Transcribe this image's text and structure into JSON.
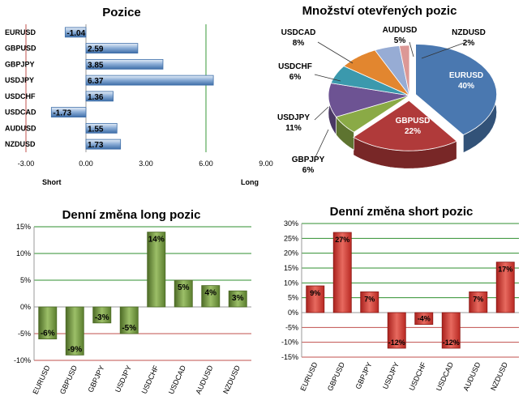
{
  "chart_data": [
    {
      "type": "bar",
      "orientation": "horizontal",
      "title": "Pozice",
      "categories": [
        "EURUSD",
        "GBPUSD",
        "GBPJPY",
        "USDJPY",
        "USDCHF",
        "USDCAD",
        "AUDUSD",
        "NZDUSD"
      ],
      "values": [
        -1.04,
        2.59,
        3.85,
        6.37,
        1.36,
        -1.73,
        1.55,
        1.73
      ],
      "value_labels": [
        "-1.04",
        "2.59",
        "3.85",
        "6.37",
        "1.36",
        "-1.73",
        "1.55",
        "1.73"
      ],
      "xlim": [
        -3,
        9
      ],
      "ticks": [
        "-3.00",
        "0.00",
        "3.00",
        "6.00",
        "9.00"
      ],
      "axis_left_label": "Short",
      "axis_right_label": "Long",
      "color": "#4f7fb8"
    },
    {
      "type": "pie",
      "title": "Množství otevřených pozic",
      "slices": [
        {
          "label": "EURUSD",
          "value": 40,
          "pct": "40%",
          "color": "#4a78b0"
        },
        {
          "label": "GBPUSD",
          "value": 22,
          "pct": "22%",
          "color": "#b03a3a"
        },
        {
          "label": "GBPJPY",
          "value": 6,
          "pct": "6%",
          "color": "#8aaa46"
        },
        {
          "label": "USDJPY",
          "value": 11,
          "pct": "11%",
          "color": "#6d5393"
        },
        {
          "label": "USDCHF",
          "value": 6,
          "pct": "6%",
          "color": "#3b99ad"
        },
        {
          "label": "USDCAD",
          "value": 8,
          "pct": "8%",
          "color": "#e2862f"
        },
        {
          "label": "AUDUSD",
          "value": 5,
          "pct": "5%",
          "color": "#97acd4"
        },
        {
          "label": "NZDUSD",
          "value": 2,
          "pct": "2%",
          "color": "#dc9896"
        }
      ]
    },
    {
      "type": "bar",
      "title": "Denní změna long pozic",
      "categories": [
        "EURUSD",
        "GBPUSD",
        "GBPJPY",
        "USDJPY",
        "USDCHF",
        "USDCAD",
        "AUDUSD",
        "NZDUSD"
      ],
      "values": [
        -6,
        -9,
        -3,
        -5,
        14,
        5,
        4,
        3
      ],
      "value_labels": [
        "-6%",
        "-9%",
        "-3%",
        "-5%",
        "14%",
        "5%",
        "4%",
        "3%"
      ],
      "ylim": [
        -10,
        15
      ],
      "ticks": [
        "15%",
        "10%",
        "5%",
        "0%",
        "-5%",
        "-10%"
      ],
      "color": "#6e8f3b"
    },
    {
      "type": "bar",
      "title": "Denní změna short pozic",
      "categories": [
        "EURUSD",
        "GBPUSD",
        "GBPJPY",
        "USDJPY",
        "USDCHF",
        "USDCAD",
        "AUDUSD",
        "NZDUSD"
      ],
      "values": [
        9,
        27,
        7,
        -12,
        -4,
        -12,
        7,
        17
      ],
      "value_labels": [
        "9%",
        "27%",
        "7%",
        "-12%",
        "-4%",
        "-12%",
        "7%",
        "17%"
      ],
      "ylim": [
        -15,
        30
      ],
      "ticks": [
        "30%",
        "25%",
        "20%",
        "15%",
        "10%",
        "5%",
        "0%",
        "-5%",
        "-10%",
        "-15%"
      ],
      "color": "#c8302b"
    }
  ]
}
